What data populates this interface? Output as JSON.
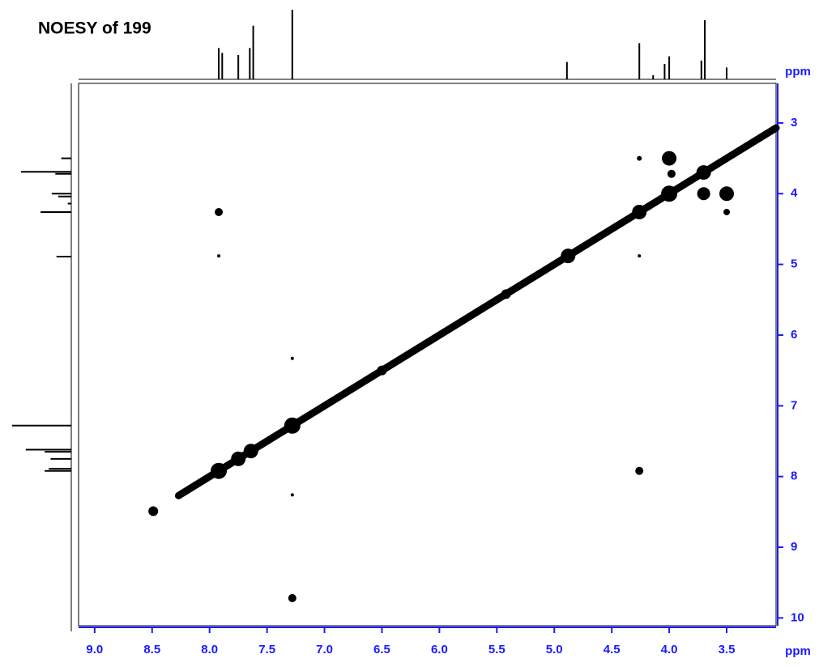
{
  "chart_data": {
    "type": "contour",
    "title": "NOESY of 199",
    "x_label": "ppm",
    "y_label": "ppm",
    "axis_color": "#1a1aff",
    "peak_color": "#000000",
    "xlim": [
      9.14,
      3.07
    ],
    "ylim": [
      2.44,
      10.11
    ],
    "xticks": [
      {
        "value": 9,
        "label": "9.0"
      },
      8.5,
      {
        "value": 8,
        "label": "8.0"
      },
      7.5,
      {
        "value": 7,
        "label": "7.0"
      },
      6.5,
      {
        "value": 6,
        "label": "6.0"
      },
      5.5,
      {
        "value": 5,
        "label": "5.0"
      },
      4.5,
      {
        "value": 4,
        "label": "4.0"
      },
      3.5
    ],
    "yticks": [
      3,
      4,
      5,
      6,
      7,
      8,
      9,
      10
    ],
    "diagonal": [
      8.27,
      3.07
    ],
    "peaks": {
      "x": [
        7.92,
        7.92,
        7.28,
        4.26,
        4.26,
        7.28,
        7.28,
        8.49,
        4.0,
        3.98,
        3.5,
        3.5,
        3.7,
        4.26,
        7.92,
        7.75,
        7.64,
        7.28,
        6.5,
        5.42,
        4.88,
        4.26,
        4.0,
        3.7
      ],
      "y": [
        4.26,
        4.88,
        6.33,
        7.92,
        4.88,
        8.26,
        9.72,
        8.49,
        3.5,
        3.72,
        4.0,
        4.26,
        4.0,
        3.5,
        7.92,
        7.75,
        7.64,
        7.28,
        6.5,
        5.42,
        4.88,
        4.26,
        4.0,
        3.7
      ],
      "sizes": [
        5,
        2,
        2,
        5,
        2,
        2,
        5,
        6,
        9,
        5,
        9,
        4,
        8,
        3,
        10,
        9,
        9,
        10,
        6,
        6,
        9,
        9,
        10,
        9
      ]
    },
    "projection": {
      "x": [
        7.92,
        7.89,
        7.75,
        7.65,
        7.62,
        7.28,
        4.89,
        4.26,
        4.14,
        4.04,
        4.0,
        3.72,
        3.69,
        3.5
      ],
      "heights": [
        0.45,
        0.38,
        0.35,
        0.45,
        0.77,
        1.0,
        0.25,
        0.52,
        0.06,
        0.22,
        0.33,
        0.27,
        0.85,
        0.17
      ]
    }
  }
}
